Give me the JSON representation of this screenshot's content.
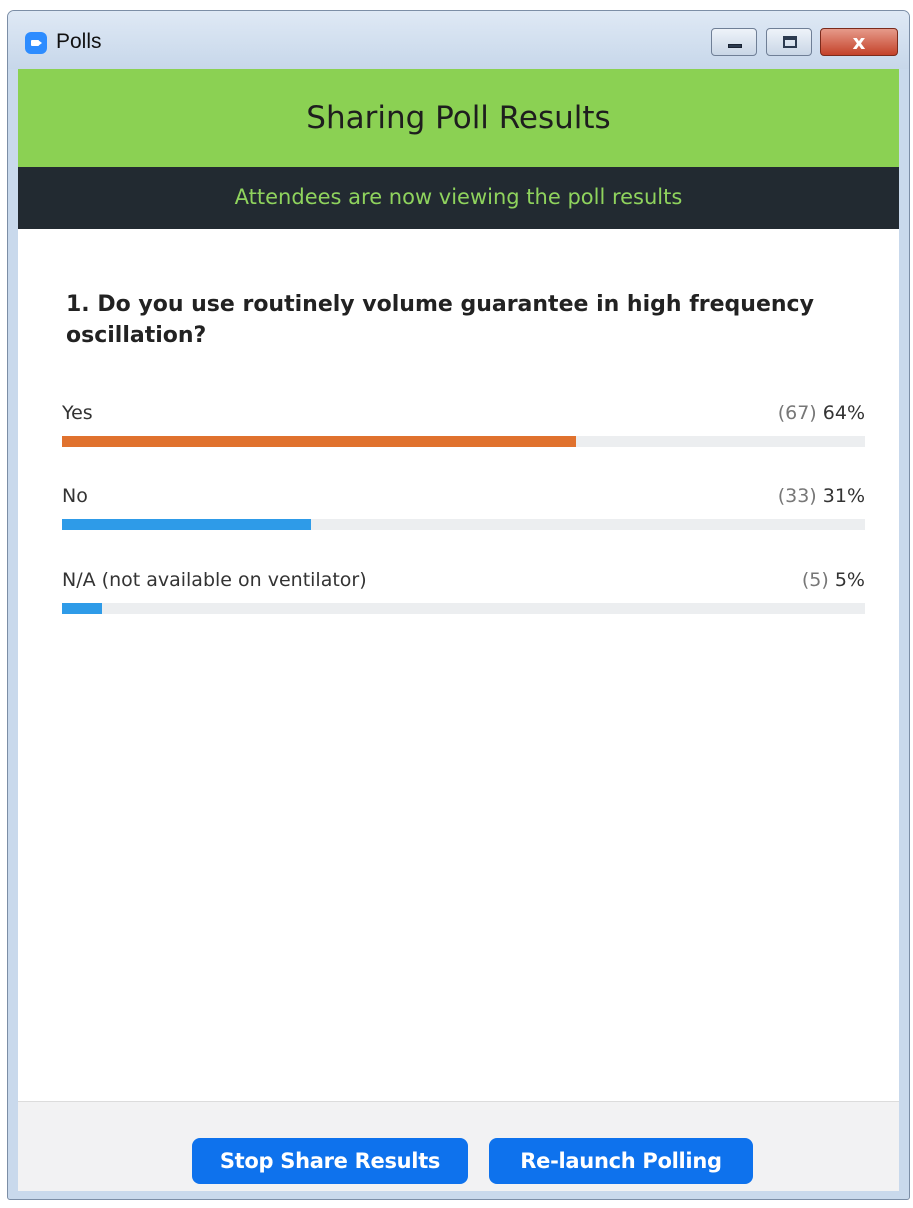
{
  "window": {
    "title": "Polls",
    "controls": {
      "minimize_icon": "minimize-icon",
      "maximize_icon": "maximize-icon",
      "close_icon": "close-icon",
      "close_glyph": "x"
    }
  },
  "banner": {
    "title": "Sharing Poll Results",
    "color": "#8bd153"
  },
  "status": {
    "text": "Attendees are now viewing the poll results",
    "text_color": "#8fd35d",
    "background": "#222a31"
  },
  "poll": {
    "question": "1. Do you use routinely volume guarantee in high frequency oscillation?",
    "answers": [
      {
        "label": "Yes",
        "count": "(67)",
        "percent": "64%",
        "fraction": 0.64,
        "color": "#e0722e"
      },
      {
        "label": "No",
        "count": "(33)",
        "percent": "31%",
        "fraction": 0.31,
        "color": "#2e9be8"
      },
      {
        "label": "N/A (not available on ventilator)",
        "count": "(5)",
        "percent": "5%",
        "fraction": 0.05,
        "color": "#2e9be8"
      }
    ]
  },
  "footer": {
    "stop_share_label": "Stop Share Results",
    "relaunch_label": "Re-launch Polling",
    "button_color": "#0e72ed"
  }
}
